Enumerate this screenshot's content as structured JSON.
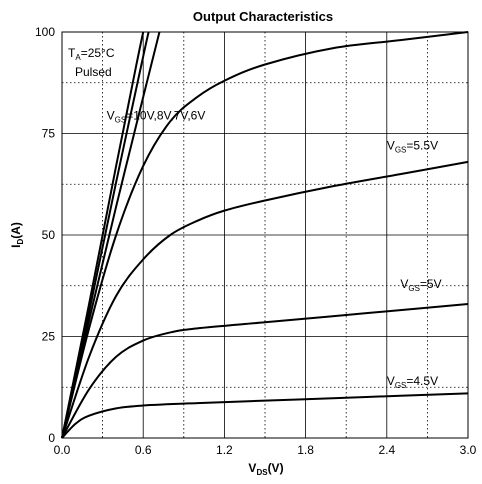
{
  "chart_data": {
    "type": "line",
    "title": "Output Characteristics",
    "xlabel": {
      "main": "V",
      "sub": "DS",
      "suffix": "(V)"
    },
    "ylabel": {
      "main": "I",
      "sub": "D",
      "suffix": "(A)"
    },
    "xlim": [
      0,
      3.0
    ],
    "ylim": [
      0,
      100
    ],
    "x_ticks": [
      "0.0",
      "0.6",
      "1.2",
      "1.8",
      "2.4",
      "3.0"
    ],
    "y_ticks": [
      "0",
      "25",
      "50",
      "75",
      "100"
    ],
    "grid": {
      "major": true,
      "minor_dotted": true
    },
    "conditions": {
      "temperature": {
        "main": "T",
        "sub": "A",
        "suffix": "=25°C"
      },
      "mode": "Pulsed"
    },
    "series": [
      {
        "name": "VGS=10V",
        "x": [
          0,
          0.2,
          0.4,
          0.55,
          0.6
        ],
        "y": [
          0,
          33,
          67,
          92,
          100
        ]
      },
      {
        "name": "VGS=8V",
        "x": [
          0,
          0.2,
          0.4,
          0.6,
          0.64
        ],
        "y": [
          0,
          31,
          63,
          94,
          100
        ]
      },
      {
        "name": "VGS=7V",
        "x": [
          0,
          0.2,
          0.4,
          0.6,
          0.72
        ],
        "y": [
          0,
          29,
          57,
          84,
          100
        ]
      },
      {
        "name": "VGS=6V",
        "x": [
          0,
          0.2,
          0.4,
          0.6,
          0.8,
          1.0,
          1.2,
          1.5,
          2.0,
          2.5,
          3.0
        ],
        "y": [
          0,
          27,
          50,
          67,
          78,
          84,
          88,
          92,
          96,
          98,
          100
        ]
      },
      {
        "name": "VGS=5.5V",
        "x": [
          0,
          0.2,
          0.4,
          0.6,
          0.8,
          1.0,
          1.2,
          1.5,
          2.0,
          2.5,
          3.0
        ],
        "y": [
          0,
          20,
          35,
          44,
          50,
          53.5,
          56,
          58.5,
          62,
          65,
          68
        ]
      },
      {
        "name": "VGS=5V",
        "x": [
          0,
          0.2,
          0.4,
          0.6,
          0.8,
          1.0,
          1.5,
          2.0,
          2.5,
          3.0
        ],
        "y": [
          0,
          12,
          20,
          24,
          26,
          27,
          28.5,
          30,
          31.5,
          33
        ]
      },
      {
        "name": "VGS=4.5V",
        "x": [
          0,
          0.1,
          0.2,
          0.4,
          0.6,
          1.0,
          1.5,
          2.0,
          2.5,
          3.0
        ],
        "y": [
          0,
          3.5,
          5.5,
          7.3,
          8,
          8.6,
          9.2,
          9.8,
          10.4,
          11
        ]
      }
    ],
    "annotations": [
      {
        "main": "V",
        "sub": "GS",
        "suffix": "=10V,8V,7V,6V",
        "at": [
          0.33,
          78.5
        ]
      },
      {
        "main": "V",
        "sub": "GS",
        "suffix": "=5.5V",
        "at": [
          2.4,
          71
        ]
      },
      {
        "main": "V",
        "sub": "GS",
        "suffix": "=5V",
        "at": [
          2.5,
          37
        ]
      },
      {
        "main": "V",
        "sub": "GS",
        "suffix": "=4.5V",
        "at": [
          2.4,
          13
        ]
      }
    ]
  }
}
